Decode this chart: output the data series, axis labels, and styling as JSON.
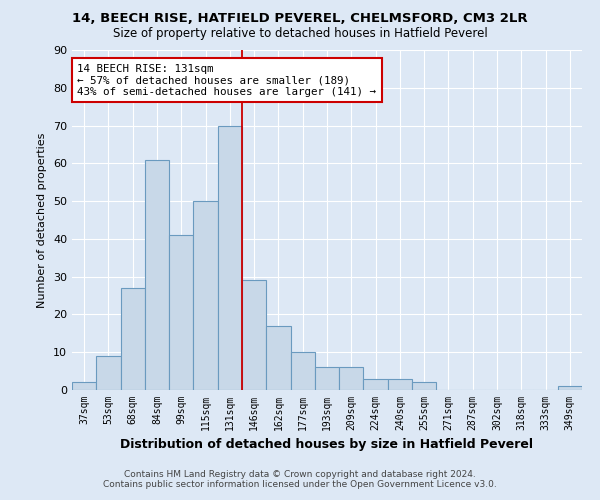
{
  "title1": "14, BEECH RISE, HATFIELD PEVEREL, CHELMSFORD, CM3 2LR",
  "title2": "Size of property relative to detached houses in Hatfield Peverel",
  "xlabel": "Distribution of detached houses by size in Hatfield Peverel",
  "ylabel": "Number of detached properties",
  "categories": [
    "37sqm",
    "53sqm",
    "68sqm",
    "84sqm",
    "99sqm",
    "115sqm",
    "131sqm",
    "146sqm",
    "162sqm",
    "177sqm",
    "193sqm",
    "209sqm",
    "224sqm",
    "240sqm",
    "255sqm",
    "271sqm",
    "287sqm",
    "302sqm",
    "318sqm",
    "333sqm",
    "349sqm"
  ],
  "values": [
    2,
    9,
    27,
    61,
    41,
    50,
    70,
    29,
    17,
    10,
    6,
    6,
    3,
    3,
    2,
    0,
    0,
    0,
    0,
    0,
    1
  ],
  "bar_color": "#c8d8e8",
  "bar_edge_color": "#6a9abf",
  "highlight_index": 6,
  "ylim": [
    0,
    90
  ],
  "yticks": [
    0,
    10,
    20,
    30,
    40,
    50,
    60,
    70,
    80,
    90
  ],
  "annotation_box_text": "14 BEECH RISE: 131sqm\n← 57% of detached houses are smaller (189)\n43% of semi-detached houses are larger (141) →",
  "annotation_box_color": "#ffffff",
  "annotation_box_edge_color": "#cc0000",
  "vline_color": "#cc0000",
  "footer1": "Contains HM Land Registry data © Crown copyright and database right 2024.",
  "footer2": "Contains public sector information licensed under the Open Government Licence v3.0.",
  "background_color": "#dde8f5",
  "grid_color": "#ffffff",
  "title1_fontsize": 9.5,
  "title2_fontsize": 8.5,
  "ylabel_fontsize": 8,
  "xlabel_fontsize": 9,
  "tick_fontsize": 7,
  "footer_fontsize": 6.5
}
